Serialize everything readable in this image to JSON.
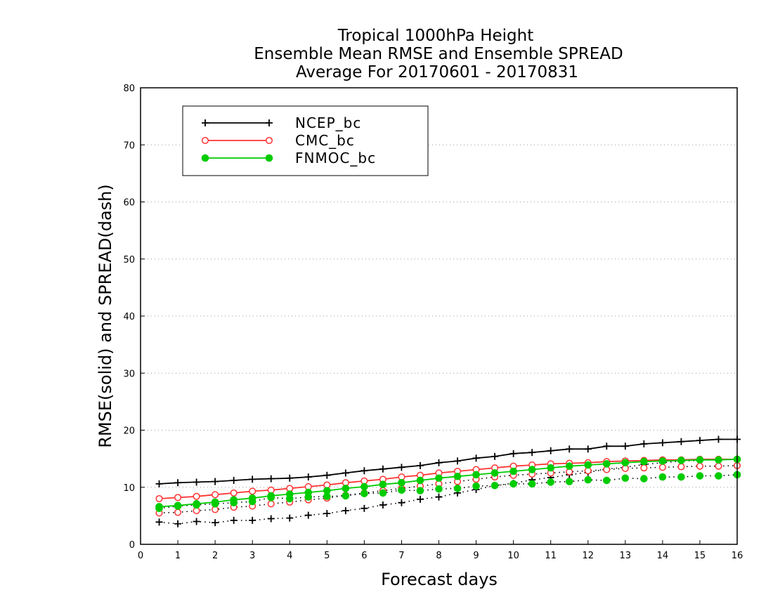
{
  "chart_data": {
    "type": "line",
    "title_lines": [
      "Tropical 1000hPa Height",
      "Ensemble Mean RMSE and Ensemble SPREAD",
      "Average For 20170601 - 20170831"
    ],
    "xlabel": "Forecast days",
    "ylabel": "RMSE(solid) and SPREAD(dash)",
    "xlim": [
      0,
      16
    ],
    "ylim": [
      0,
      80
    ],
    "xticks": [
      "0",
      "1",
      "2",
      "3",
      "4",
      "5",
      "6",
      "7",
      "8",
      "9",
      "10",
      "11",
      "12",
      "13",
      "14",
      "15",
      "16"
    ],
    "yticks": [
      "0",
      "10",
      "20",
      "30",
      "40",
      "50",
      "60",
      "70",
      "80"
    ],
    "grid": "horizontal dotted",
    "legend_position": "top-left",
    "x": [
      0.5,
      1,
      1.5,
      2,
      2.5,
      3,
      3.5,
      4,
      4.5,
      5,
      5.5,
      6,
      6.5,
      7,
      7.5,
      8,
      8.5,
      9,
      9.5,
      10,
      10.5,
      11,
      11.5,
      12,
      12.5,
      13,
      13.5,
      14,
      14.5,
      15,
      15.5,
      16
    ],
    "series": [
      {
        "name": "NCEP_bc",
        "color": "#000000",
        "marker": "plus",
        "rmse": [
          10.6,
          10.8,
          10.9,
          11.0,
          11.2,
          11.4,
          11.5,
          11.6,
          11.8,
          12.1,
          12.5,
          12.9,
          13.2,
          13.5,
          13.8,
          14.3,
          14.6,
          15.1,
          15.4,
          15.9,
          16.1,
          16.4,
          16.7,
          16.7,
          17.2,
          17.2,
          17.6,
          17.8,
          18.0,
          18.2,
          18.4,
          18.4
        ],
        "spread": [
          3.9,
          3.6,
          4.0,
          3.8,
          4.2,
          4.2,
          4.5,
          4.6,
          5.1,
          5.4,
          5.9,
          6.3,
          6.9,
          7.3,
          7.9,
          8.3,
          9.0,
          9.6,
          10.3,
          10.7,
          11.3,
          11.7,
          12.2,
          12.6,
          13.2,
          13.5,
          14.0,
          14.3,
          14.6,
          14.7,
          14.9,
          14.8
        ]
      },
      {
        "name": "CMC_bc",
        "color": "#ff3333",
        "marker": "open-circle",
        "rmse": [
          8.0,
          8.2,
          8.4,
          8.7,
          9.0,
          9.3,
          9.5,
          9.8,
          10.1,
          10.4,
          10.8,
          11.1,
          11.4,
          11.8,
          12.1,
          12.5,
          12.8,
          13.1,
          13.4,
          13.7,
          13.9,
          14.1,
          14.2,
          14.3,
          14.5,
          14.6,
          14.7,
          14.8,
          14.8,
          14.9,
          14.9,
          14.9
        ],
        "spread": [
          5.5,
          5.6,
          5.9,
          6.1,
          6.5,
          6.7,
          7.1,
          7.4,
          7.8,
          8.1,
          8.6,
          9.0,
          9.4,
          9.8,
          10.2,
          10.6,
          11.0,
          11.4,
          11.8,
          12.1,
          12.3,
          12.5,
          12.7,
          12.9,
          13.1,
          13.3,
          13.4,
          13.5,
          13.6,
          13.7,
          13.7,
          13.8
        ]
      },
      {
        "name": "FNMOC_bc",
        "color": "#00cc00",
        "marker": "filled-circle",
        "rmse": [
          6.6,
          6.8,
          7.1,
          7.4,
          7.8,
          8.1,
          8.5,
          8.8,
          9.1,
          9.4,
          9.8,
          10.1,
          10.5,
          10.8,
          11.2,
          11.6,
          11.9,
          12.2,
          12.5,
          12.8,
          13.1,
          13.4,
          13.7,
          13.9,
          14.1,
          14.3,
          14.5,
          14.6,
          14.7,
          14.8,
          14.8,
          14.9
        ],
        "spread": [
          6.3,
          6.7,
          6.9,
          7.1,
          7.3,
          7.5,
          8.2,
          8.0,
          8.3,
          8.4,
          8.5,
          8.9,
          9.0,
          9.5,
          9.4,
          9.7,
          9.8,
          10.2,
          10.3,
          10.6,
          10.6,
          10.9,
          11.0,
          11.3,
          11.2,
          11.6,
          11.5,
          11.8,
          11.8,
          12.0,
          12.0,
          12.2
        ]
      }
    ]
  }
}
